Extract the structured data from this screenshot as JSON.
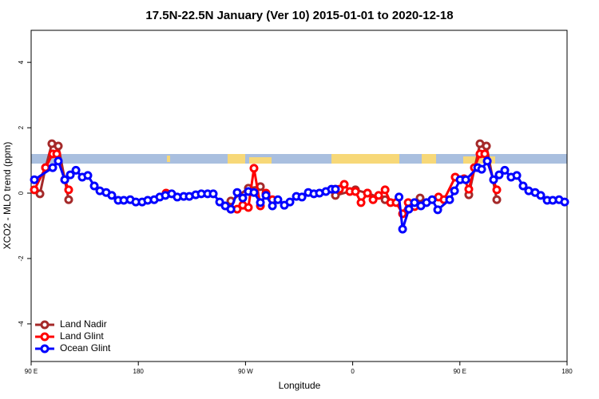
{
  "chart_data": {
    "type": "line",
    "title": "17.5N-22.5N January (Ver 10)   2015-01-01 to 2020-12-18",
    "x_label": "Longitude",
    "y_label": "XCO2 - MLO trend (ppm)",
    "xlim": [
      90,
      540
    ],
    "ylim": [
      -5.15,
      4.98
    ],
    "xticks": [
      {
        "value": 90,
        "label": "90 E"
      },
      {
        "value": 180,
        "label": "180"
      },
      {
        "value": 270,
        "label": "90 W"
      },
      {
        "value": 360,
        "label": "0"
      },
      {
        "value": 450,
        "label": "90 E"
      },
      {
        "value": 540,
        "label": "180"
      }
    ],
    "yticks": [
      -4,
      -2,
      0,
      2,
      4
    ],
    "legend_position": "bottom-left",
    "series": [
      {
        "name": "Land Nadir",
        "color": "#a52a2a",
        "x": [
          97.4,
          102.1,
          107.4,
          112.8,
          121.5,
          null,
          257.7,
          272.4,
          282.5,
          287.2,
          null,
          345.5,
          362.3,
          372.4,
          387.2,
          null,
          416.6,
          null,
          457.5,
          466.9,
          472.3,
          481
        ],
        "values": [
          -0.02,
          0.78,
          1.51,
          1.44,
          -0.2,
          null,
          -0.24,
          0.15,
          0.2,
          -0.05,
          null,
          -0.07,
          0.1,
          0,
          -0.2,
          null,
          -0.15,
          null,
          -0.05,
          1.51,
          1.44,
          -0.2
        ]
      },
      {
        "name": "Land Glint",
        "color": "#ff0000",
        "x": [
          92.7,
          102.1,
          108.1,
          111.5,
          118.2,
          121.5,
          null,
          203.3,
          null,
          257.7,
          263,
          267.7,
          272.4,
          277.1,
          282.5,
          287.2,
          292.6,
          null,
          345.5,
          348.9,
          352.9,
          357.6,
          362.3,
          367,
          372.4,
          377.1,
          381.8,
          387.2,
          391.8,
          396.5,
          401.9,
          406.6,
          412,
          null,
          432.1,
          436.7,
          446.1,
          453.5,
          457.5,
          462.2,
          466.9,
          470.9,
          481
        ],
        "values": [
          0.1,
          0.78,
          1.2,
          1.2,
          0.41,
          0.1,
          null,
          0,
          null,
          -0.49,
          -0.49,
          -0.37,
          -0.44,
          0.76,
          -0.39,
          0,
          -0.2,
          null,
          0.12,
          0.12,
          0.27,
          0.05,
          0.05,
          -0.29,
          0,
          -0.2,
          -0.07,
          0.1,
          -0.29,
          -0.29,
          -0.63,
          -0.29,
          -0.41,
          null,
          -0.12,
          -0.2,
          0.49,
          0.44,
          0.12,
          0.78,
          1.2,
          1.2,
          0.1
        ]
      },
      {
        "name": "Ocean Glint",
        "color": "#0000ff",
        "x": [
          92.7,
          108.1,
          112.8,
          118.2,
          122.9,
          127.6,
          132.9,
          137.6,
          143,
          147.7,
          153,
          157.7,
          163.1,
          167.8,
          173.2,
          177.9,
          183.2,
          187.9,
          193.3,
          198,
          202.7,
          208,
          212.7,
          218.1,
          222.8,
          228.2,
          232.9,
          238.2,
          242.9,
          248.3,
          253,
          257.7,
          263,
          267.7,
          272.4,
          277.1,
          282.5,
          287.2,
          292.6,
          297.2,
          302.6,
          307.3,
          312.7,
          317.4,
          322.7,
          327.4,
          332.1,
          337.5,
          342.2,
          345.5,
          null,
          398.9,
          401.9,
          407.2,
          411.9,
          417.3,
          422,
          426.7,
          431.4,
          441.4,
          445.5,
          450.2,
          454.9,
          465,
          468.3,
          473,
          478.3,
          483,
          487.7,
          493,
          497.8,
          503.1,
          507.8,
          513.2,
          517.9,
          523.3,
          528,
          533.3,
          538
        ],
        "values": [
          0.41,
          0.78,
          0.98,
          0.41,
          0.56,
          0.7,
          0.49,
          0.54,
          0.22,
          0.07,
          0.02,
          -0.07,
          -0.22,
          -0.22,
          -0.2,
          -0.27,
          -0.27,
          -0.22,
          -0.2,
          -0.12,
          -0.07,
          -0.02,
          -0.12,
          -0.1,
          -0.1,
          -0.05,
          -0.02,
          -0.02,
          -0.02,
          -0.27,
          -0.39,
          -0.49,
          0.02,
          -0.15,
          0.05,
          0.02,
          -0.29,
          -0.07,
          -0.39,
          -0.2,
          -0.37,
          -0.27,
          -0.1,
          -0.12,
          0.02,
          -0.02,
          0,
          0.05,
          0.12,
          0.12,
          null,
          -0.12,
          -1.1,
          -0.49,
          -0.29,
          -0.39,
          -0.29,
          -0.2,
          -0.51,
          -0.2,
          0.07,
          0.41,
          0.41,
          0.78,
          0.73,
          0.98,
          0.41,
          0.56,
          0.7,
          0.49,
          0.54,
          0.22,
          0.07,
          0.02,
          -0.07,
          -0.22,
          -0.22,
          -0.2,
          -0.27
        ]
      }
    ]
  }
}
